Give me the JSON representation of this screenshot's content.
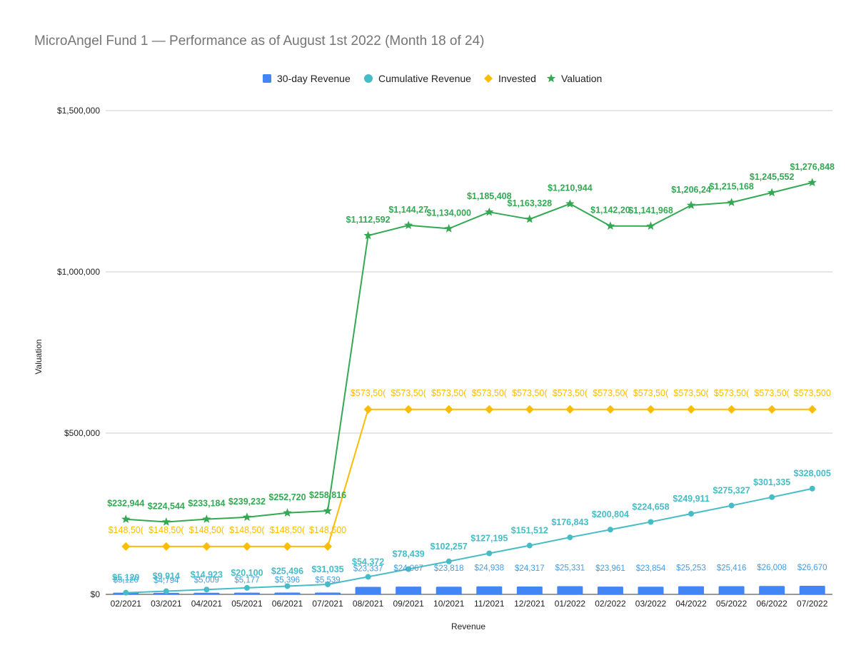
{
  "title": "MicroAngel Fund 1 — Performance as of August 1st 2022 (Month 18 of 24)",
  "chart_data": {
    "type": "line",
    "title": "MicroAngel Fund 1 — Performance as of August 1st 2022 (Month 18 of 24)",
    "xlabel": "Revenue",
    "ylabel": "Valuation",
    "ylim": [
      0,
      1500000
    ],
    "yticks": [
      "$0",
      "$500,000",
      "$1,000,000",
      "$1,500,000"
    ],
    "yticks_values": [
      0,
      500000,
      1000000,
      1500000
    ],
    "grid": true,
    "legend_position": "top",
    "categories": [
      "02/2021",
      "03/2021",
      "04/2021",
      "05/2021",
      "06/2021",
      "07/2021",
      "08/2021",
      "09/2021",
      "10/2021",
      "11/2021",
      "12/2021",
      "01/2022",
      "02/2022",
      "03/2022",
      "04/2022",
      "05/2022",
      "06/2022",
      "07/2022"
    ],
    "series": [
      {
        "name": "30-day Revenue",
        "type": "bar",
        "color": "#4285f4",
        "label_color": "#4a9bd8",
        "values": [
          5120,
          4794,
          5009,
          5177,
          5396,
          5539,
          23337,
          24067,
          23818,
          24938,
          24317,
          25331,
          23961,
          23854,
          25253,
          25416,
          26008,
          26670
        ],
        "labels": [
          "$5,120",
          "$4,794",
          "$5,009",
          "$5,177",
          "$5,396",
          "$5,539",
          "$23,337",
          "$24,067",
          "$23,818",
          "$24,938",
          "$24,317",
          "$25,331",
          "$23,961",
          "$23,854",
          "$25,253",
          "$25,416",
          "$26,008",
          "$26,670"
        ]
      },
      {
        "name": "Cumulative Revenue",
        "type": "line",
        "marker": "circle",
        "color": "#46bdc6",
        "values": [
          5120,
          9914,
          14923,
          20100,
          25496,
          31035,
          54372,
          78439,
          102257,
          127195,
          151512,
          176843,
          200804,
          224658,
          249911,
          275327,
          301335,
          328005
        ],
        "labels": [
          "$5,120",
          "$9,914",
          "$14,923",
          "$20,100",
          "$25,496",
          "$31,035",
          "$54,372",
          "$78,439",
          "$102,257",
          "$127,195",
          "$151,512",
          "$176,843",
          "$200,804",
          "$224,658",
          "$249,911",
          "$275,327",
          "$301,335",
          "$328,005"
        ]
      },
      {
        "name": "Invested",
        "type": "line",
        "marker": "diamond",
        "color": "#fbbc04",
        "values": [
          148500,
          148500,
          148500,
          148500,
          148500,
          148500,
          573500,
          573500,
          573500,
          573500,
          573500,
          573500,
          573500,
          573500,
          573500,
          573500,
          573500,
          573500
        ],
        "labels": [
          "$148,50(",
          "$148,50(",
          "$148,50(",
          "$148,50(",
          "$148,50(",
          "$148,500",
          "$573,50(",
          "$573,50(",
          "$573,50(",
          "$573,50(",
          "$573,50(",
          "$573,50(",
          "$573,50(",
          "$573,50(",
          "$573,50(",
          "$573,50(",
          "$573,50(",
          "$573,500"
        ]
      },
      {
        "name": "Valuation",
        "type": "line",
        "marker": "star",
        "color": "#34a853",
        "values": [
          232944,
          224544,
          233184,
          239232,
          252720,
          258816,
          1112592,
          1144272,
          1134000,
          1185408,
          1163328,
          1210944,
          1142208,
          1141968,
          1206248,
          1215168,
          1245552,
          1276848
        ],
        "labels": [
          "$232,944",
          "$224,544",
          "$233,184",
          "$239,232",
          "$252,720",
          "$258,816",
          "$1,112,592",
          "$1,144,27",
          "$1,134,000",
          "$1,185,408",
          "$1,163,328",
          "$1,210,944",
          "$1,142,20",
          "$1,141,968",
          "$1,206,24",
          "$1,215,168",
          "$1,245,552",
          "$1,276,848"
        ]
      }
    ]
  }
}
